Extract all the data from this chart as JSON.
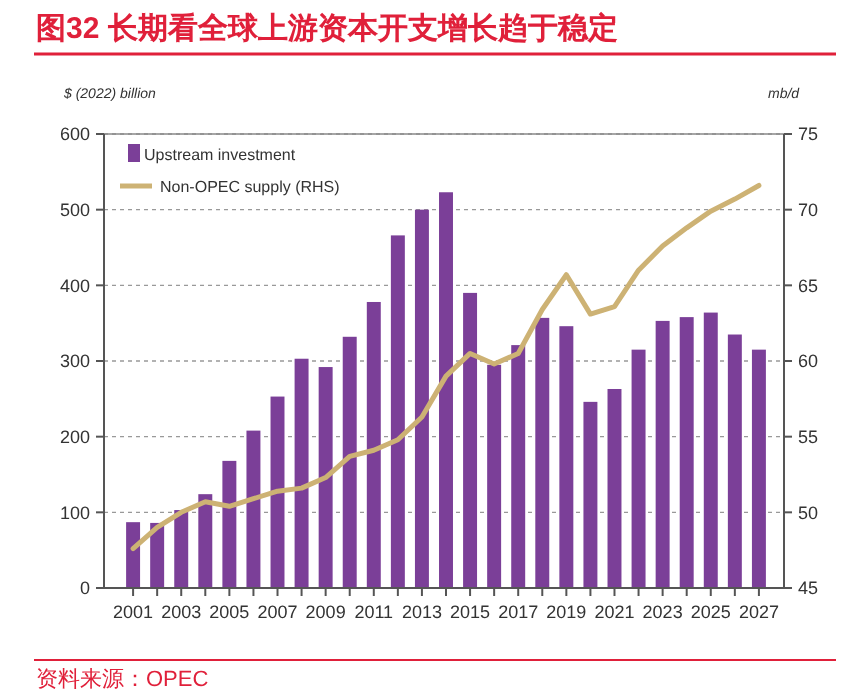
{
  "chart_data": {
    "type": "bar",
    "title": "图32  长期看全球上游资本开支增长趋于稳定",
    "ylabel": "$ (2022) billion",
    "y2label": "mb/d",
    "categories": [
      "2001",
      null,
      "2003",
      null,
      "2005",
      null,
      "2007",
      null,
      "2009",
      null,
      "2011",
      null,
      "2013",
      null,
      "2015",
      null,
      "2017",
      null,
      "2019",
      null,
      "2021",
      null,
      "2023",
      null,
      "2025",
      null,
      "2027"
    ],
    "series": [
      {
        "name": "Upstream investment",
        "color": "#7b3f98",
        "values": [
          87,
          86,
          103,
          124,
          168,
          208,
          253,
          303,
          292,
          332,
          378,
          466,
          500,
          523,
          390,
          295,
          321,
          357,
          346,
          246,
          263,
          315,
          353,
          358,
          364,
          335,
          315
        ]
      },
      {
        "name": "Non-OPEC supply (RHS)",
        "type": "line",
        "axis": "y2",
        "color": "#cdb274",
        "values": [
          47.6,
          49.0,
          50.0,
          50.7,
          50.4,
          50.9,
          51.4,
          51.6,
          52.3,
          53.7,
          54.1,
          54.8,
          56.3,
          59.0,
          60.5,
          59.8,
          60.5,
          63.4,
          65.7,
          63.1,
          63.6,
          66.0,
          67.6,
          68.8,
          69.9,
          70.7,
          71.6
        ]
      }
    ],
    "ylim": [
      0,
      600
    ],
    "yticks": [
      0,
      100,
      200,
      300,
      400,
      500,
      600
    ],
    "y2lim": [
      45,
      75
    ],
    "y2ticks": [
      45,
      50,
      55,
      60,
      65,
      70,
      75
    ],
    "grid": "y",
    "legend": "top left",
    "annotations": [
      "资料来源：OPEC"
    ]
  }
}
